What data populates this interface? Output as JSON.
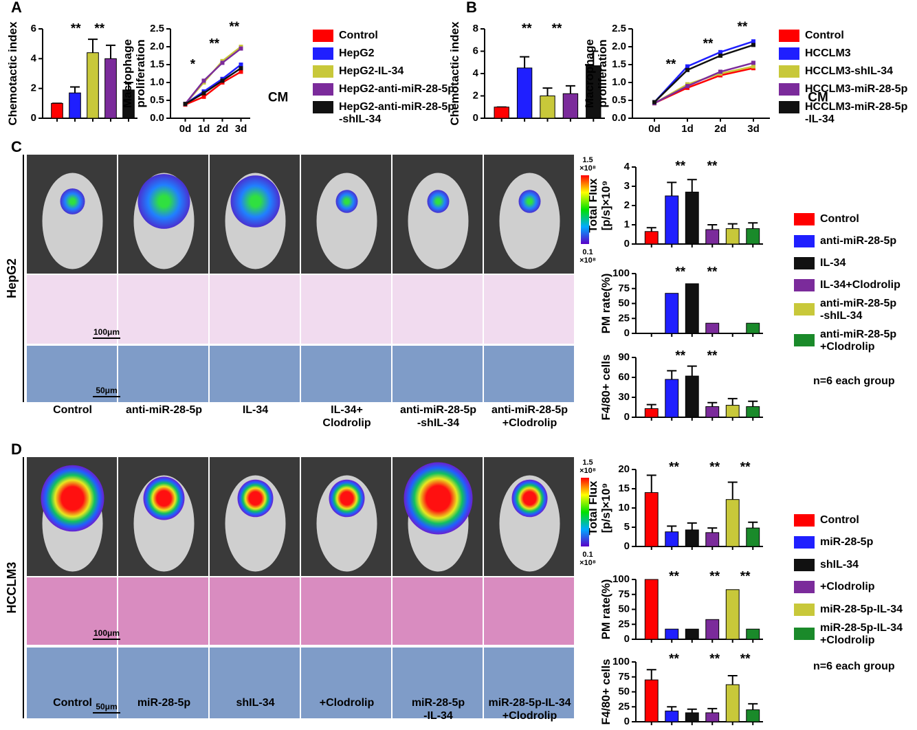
{
  "panel_labels": [
    "A",
    "B",
    "C",
    "D"
  ],
  "chart_data": [
    {
      "type": "bar",
      "ylabel": "Chemotactic index",
      "categories": [
        null,
        null,
        null,
        null,
        null
      ],
      "values": [
        1,
        1.7,
        4.4,
        4.0,
        1.9
      ],
      "errors": [
        0,
        0.4,
        0.9,
        0.9,
        0.5
      ],
      "colors": [
        "#ff0000",
        "#1f1fff",
        "#c8c83a",
        "#7b2b9b",
        "#111111"
      ],
      "ylim": [
        0,
        6
      ],
      "yticks": [
        0,
        2,
        4,
        6
      ],
      "annotations": [
        "**",
        "**"
      ]
    },
    {
      "type": "line",
      "ylabel": "Macrophage\nproliferation",
      "categories": [
        "0d",
        "1d",
        "2d",
        "3d"
      ],
      "ylim": [
        0,
        2.5
      ],
      "yticks": [
        {
          "value": 0,
          "label": "0.0"
        },
        0.5,
        {
          "value": 1,
          "label": "1.0"
        },
        1.5,
        {
          "value": 2,
          "label": "2.0"
        },
        2.5
      ],
      "annotations": [
        "*",
        "**",
        "**",
        "CM"
      ],
      "series": [
        {
          "name": "Control",
          "color": "#ff0000",
          "values": [
            0.38,
            0.6,
            1.0,
            1.3
          ]
        },
        {
          "name": "HepG2",
          "color": "#1f1fff",
          "values": [
            0.4,
            0.75,
            1.1,
            1.5
          ]
        },
        {
          "name": "HepG2-IL-34",
          "color": "#c8c83a",
          "values": [
            0.4,
            1.0,
            1.6,
            2.0
          ]
        },
        {
          "name": "HepG2-anti-miR-28-5p",
          "color": "#7b2b9b",
          "values": [
            0.4,
            1.05,
            1.55,
            1.95
          ]
        },
        {
          "name": "HepG2-anti-miR-28-5p\n-shIL-34",
          "color": "#111111",
          "values": [
            0.4,
            0.7,
            1.05,
            1.4
          ]
        }
      ]
    },
    {
      "type": "bar",
      "ylabel": "Chemotactic index",
      "categories": [
        null,
        null,
        null,
        null,
        null
      ],
      "values": [
        1,
        4.5,
        2.0,
        2.2,
        4.7
      ],
      "errors": [
        0,
        1.0,
        0.7,
        0.7,
        1.3
      ],
      "colors": [
        "#ff0000",
        "#1f1fff",
        "#c8c83a",
        "#7b2b9b",
        "#111111"
      ],
      "ylim": [
        0,
        8
      ],
      "yticks": [
        0,
        2,
        4,
        6,
        8
      ],
      "annotations": [
        "**",
        "**"
      ]
    },
    {
      "type": "line",
      "ylabel": "Macrophage\nproliferation",
      "categories": [
        "0d",
        "1d",
        "2d",
        "3d"
      ],
      "ylim": [
        0,
        2.5
      ],
      "yticks": [
        {
          "value": 0,
          "label": "0.0"
        },
        0.5,
        {
          "value": 1,
          "label": "1.0"
        },
        1.5,
        {
          "value": 2,
          "label": "2.0"
        },
        2.5
      ],
      "annotations": [
        "**",
        "**",
        "**",
        "CM"
      ],
      "series": [
        {
          "name": "Control",
          "color": "#ff0000",
          "values": [
            0.42,
            0.85,
            1.2,
            1.4
          ]
        },
        {
          "name": "HCCLM3",
          "color": "#1f1fff",
          "values": [
            0.45,
            1.45,
            1.85,
            2.15
          ]
        },
        {
          "name": "HCCLM3-shIL-34",
          "color": "#c8c83a",
          "values": [
            0.42,
            0.95,
            1.25,
            1.45
          ]
        },
        {
          "name": "HCCLM3-miR-28-5p",
          "color": "#7b2b9b",
          "values": [
            0.42,
            0.9,
            1.3,
            1.55
          ]
        },
        {
          "name": "HCCLM3-miR-28-5p\n-IL-34",
          "color": "#111111",
          "values": [
            0.45,
            1.35,
            1.75,
            2.05
          ]
        }
      ]
    },
    {
      "type": "bar",
      "ylabel": "Total Flux\n[p/s]×10⁹",
      "categories": [
        null,
        null,
        null,
        null,
        null,
        null
      ],
      "values": [
        0.65,
        2.5,
        2.7,
        0.75,
        0.8,
        0.8
      ],
      "errors": [
        0.2,
        0.7,
        0.65,
        0.25,
        0.25,
        0.3
      ],
      "colors": [
        "#ff0000",
        "#1f1fff",
        "#111111",
        "#7b2b9b",
        "#c8c83a",
        "#1a8a2a"
      ],
      "ylim": [
        0,
        4
      ],
      "yticks": [
        0,
        1,
        2,
        3,
        4
      ],
      "annotations": [
        "**",
        "**"
      ]
    },
    {
      "type": "bar",
      "ylabel": "PM rate(%)",
      "categories": [
        null,
        null,
        null,
        null,
        null,
        null
      ],
      "values": [
        0,
        67,
        83,
        17,
        0,
        17
      ],
      "colors": [
        "#ff0000",
        "#1f1fff",
        "#111111",
        "#7b2b9b",
        "#c8c83a",
        "#1a8a2a"
      ],
      "ylim": [
        0,
        100
      ],
      "yticks": [
        0,
        25,
        50,
        75,
        100
      ],
      "annotations": [
        "**",
        "**"
      ]
    },
    {
      "type": "bar",
      "ylabel": "F4/80+ cells",
      "categories": [
        null,
        null,
        null,
        null,
        null,
        null
      ],
      "values": [
        13,
        57,
        62,
        16,
        18,
        16
      ],
      "errors": [
        6,
        13,
        15,
        6,
        10,
        8
      ],
      "colors": [
        "#ff0000",
        "#1f1fff",
        "#111111",
        "#7b2b9b",
        "#c8c83a",
        "#1a8a2a"
      ],
      "ylim": [
        0,
        90
      ],
      "yticks": [
        0,
        30,
        60,
        90
      ],
      "annotations": [
        "**",
        "**"
      ]
    },
    {
      "type": "bar",
      "ylabel": "Total Flux\n[p/s]×10⁹",
      "categories": [
        null,
        null,
        null,
        null,
        null,
        null
      ],
      "values": [
        14,
        3.8,
        4.3,
        3.6,
        12.2,
        4.8
      ],
      "errors": [
        4.5,
        1.5,
        1.8,
        1.2,
        4.5,
        1.5
      ],
      "colors": [
        "#ff0000",
        "#1f1fff",
        "#111111",
        "#7b2b9b",
        "#c8c83a",
        "#1a8a2a"
      ],
      "ylim": [
        0,
        20
      ],
      "yticks": [
        0,
        5,
        10,
        15,
        20
      ],
      "annotations": [
        "**",
        "**",
        "**"
      ]
    },
    {
      "type": "bar",
      "ylabel": "PM rate(%)",
      "categories": [
        null,
        null,
        null,
        null,
        null,
        null
      ],
      "values": [
        100,
        17,
        17,
        33,
        83,
        17
      ],
      "colors": [
        "#ff0000",
        "#1f1fff",
        "#111111",
        "#7b2b9b",
        "#c8c83a",
        "#1a8a2a"
      ],
      "ylim": [
        0,
        100
      ],
      "yticks": [
        0,
        25,
        50,
        75,
        100
      ],
      "annotations": [
        "**",
        "**",
        "**"
      ]
    },
    {
      "type": "bar",
      "ylabel": "F4/80+ cells",
      "categories": [
        null,
        null,
        null,
        null,
        null,
        null
      ],
      "values": [
        70,
        18,
        15,
        15,
        62,
        20
      ],
      "errors": [
        17,
        7,
        6,
        7,
        15,
        10
      ],
      "colors": [
        "#ff0000",
        "#1f1fff",
        "#111111",
        "#7b2b9b",
        "#c8c83a",
        "#1a8a2a"
      ],
      "ylim": [
        0,
        100
      ],
      "yticks": [
        0,
        25,
        50,
        75,
        100
      ],
      "annotations": [
        "**",
        "**",
        "**"
      ]
    }
  ],
  "panel_c": {
    "row_label": "HepG2",
    "columns": [
      "Control",
      "anti-miR-28-5p",
      "IL-34",
      "IL-34+\nClodrolip",
      "anti-miR-28-5p\n-shIL-34",
      "anti-miR-28-5p\n+Clodrolip"
    ],
    "scale_he": "100μm",
    "scale_ihc": "50μm",
    "colorbar_max": "1.5\n×10⁸",
    "colorbar_min": "0.1\n×10⁸",
    "legend": [
      {
        "name": "Control",
        "color": "#ff0000"
      },
      {
        "name": "anti-miR-28-5p",
        "color": "#1f1fff"
      },
      {
        "name": "IL-34",
        "color": "#111111"
      },
      {
        "name": "IL-34+Clodrolip",
        "color": "#7b2b9b"
      },
      {
        "name": "anti-miR-28-5p\n-shIL-34",
        "color": "#c8c83a"
      },
      {
        "name": "anti-miR-28-5p\n+Clodrolip",
        "color": "#1a8a2a"
      }
    ],
    "note": "n=6 each group"
  },
  "panel_d": {
    "row_label": "HCCLM3",
    "columns": [
      "Control",
      "miR-28-5p",
      "shIL-34",
      "+Clodrolip",
      "miR-28-5p\n-IL-34",
      "miR-28-5p-IL-34\n+Clodrolip"
    ],
    "scale_he": "100μm",
    "scale_ihc": "50μm",
    "colorbar_max": "1.5\n×10⁸",
    "colorbar_min": "0.1\n×10⁸",
    "legend": [
      {
        "name": "Control",
        "color": "#ff0000"
      },
      {
        "name": "miR-28-5p",
        "color": "#1f1fff"
      },
      {
        "name": "shIL-34",
        "color": "#111111"
      },
      {
        "name": "+Clodrolip",
        "color": "#7b2b9b"
      },
      {
        "name": "miR-28-5p-IL-34",
        "color": "#c8c83a"
      },
      {
        "name": "miR-28-5p-IL-34\n+Clodrolip",
        "color": "#1a8a2a"
      }
    ],
    "note": "n=6 each group"
  }
}
